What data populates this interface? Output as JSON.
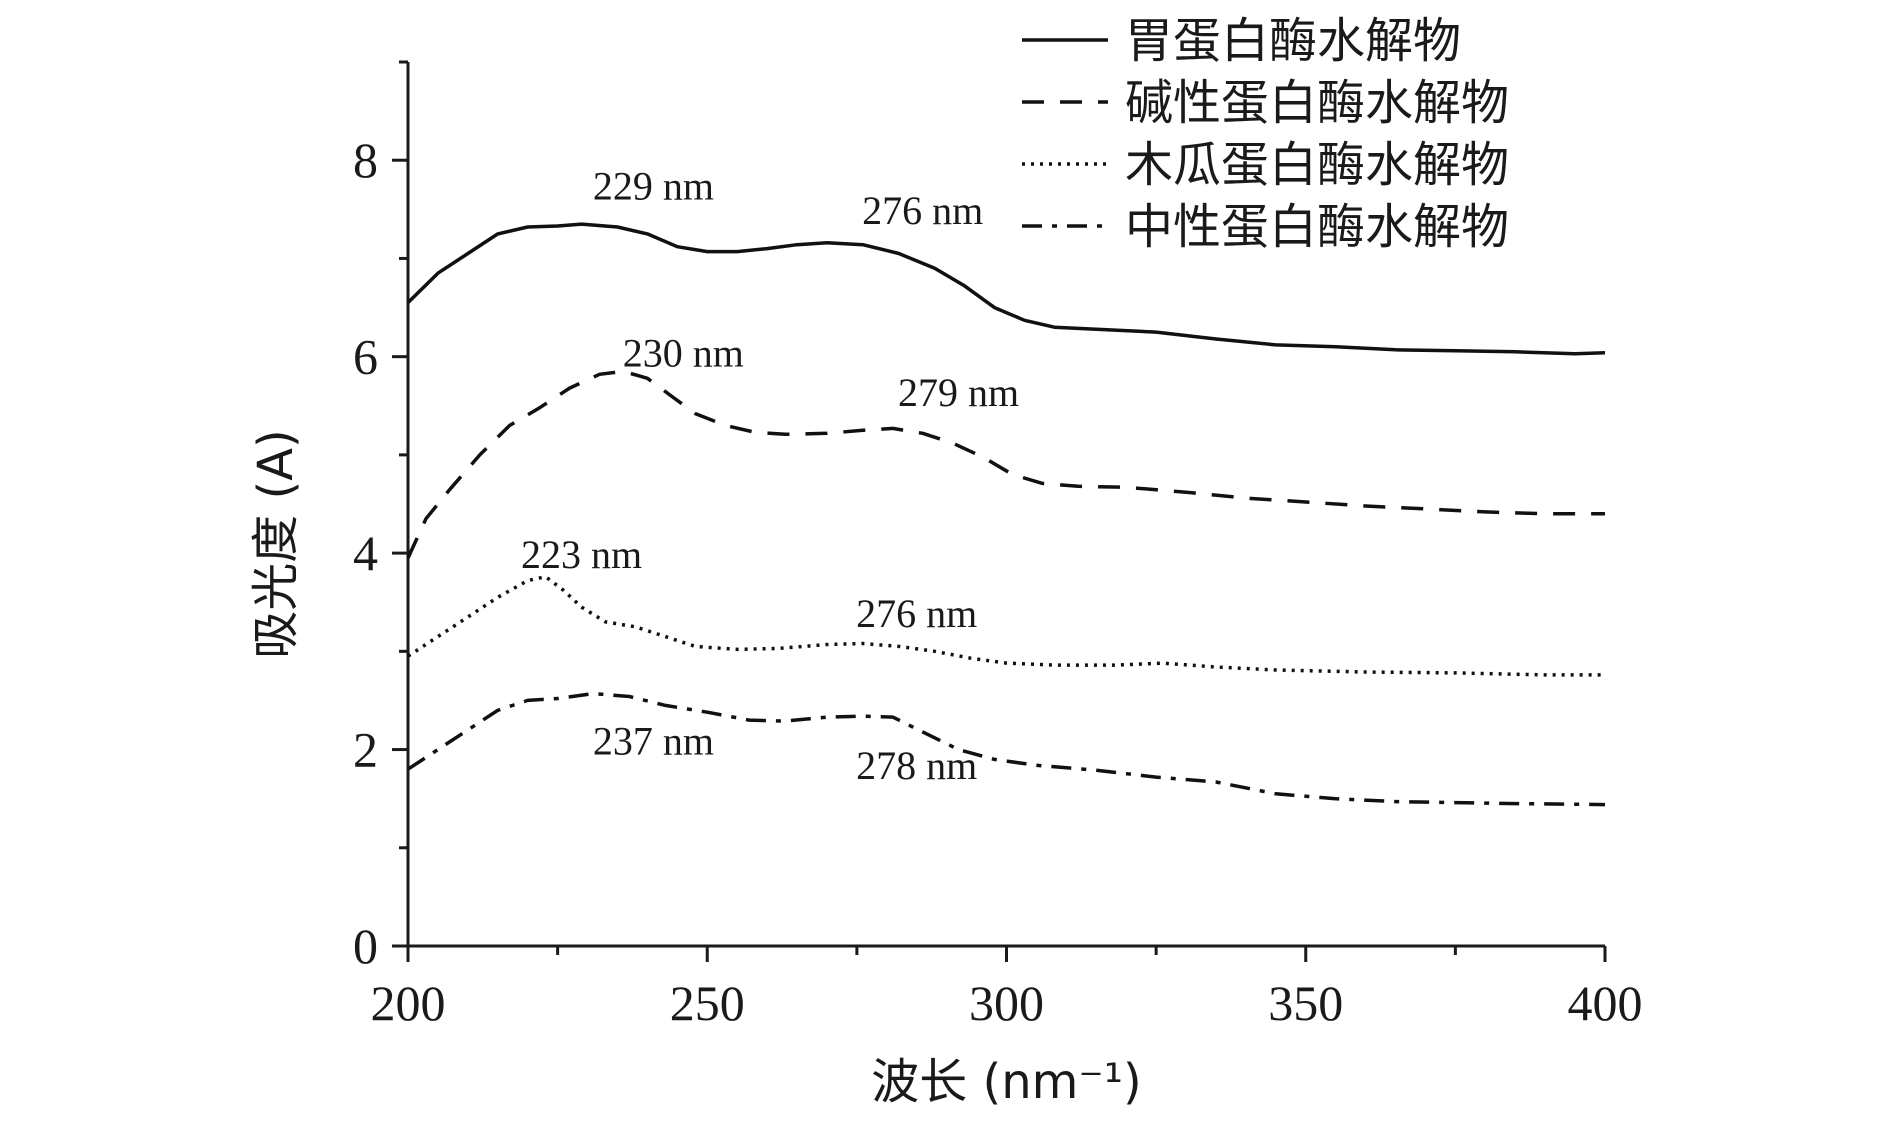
{
  "chart_data": {
    "type": "line",
    "title": "",
    "xlabel": "波长 (nm⁻¹)",
    "ylabel": "吸光度 (A)",
    "xlim": [
      200,
      400
    ],
    "ylim": [
      0,
      9
    ],
    "x_ticks": [
      200,
      250,
      300,
      350,
      400
    ],
    "y_ticks": [
      0,
      2,
      4,
      6,
      8
    ],
    "grid": false,
    "legend_position": "top-right",
    "series": [
      {
        "name": "胃蛋白酶水解物",
        "dash": "solid",
        "points": [
          [
            200,
            6.55
          ],
          [
            205,
            6.85
          ],
          [
            210,
            7.05
          ],
          [
            215,
            7.25
          ],
          [
            220,
            7.32
          ],
          [
            225,
            7.33
          ],
          [
            229,
            7.35
          ],
          [
            235,
            7.32
          ],
          [
            240,
            7.25
          ],
          [
            245,
            7.12
          ],
          [
            250,
            7.07
          ],
          [
            255,
            7.07
          ],
          [
            260,
            7.1
          ],
          [
            265,
            7.14
          ],
          [
            270,
            7.16
          ],
          [
            276,
            7.14
          ],
          [
            282,
            7.05
          ],
          [
            288,
            6.9
          ],
          [
            293,
            6.72
          ],
          [
            298,
            6.5
          ],
          [
            303,
            6.37
          ],
          [
            308,
            6.3
          ],
          [
            315,
            6.28
          ],
          [
            325,
            6.25
          ],
          [
            335,
            6.18
          ],
          [
            345,
            6.12
          ],
          [
            355,
            6.1
          ],
          [
            365,
            6.07
          ],
          [
            375,
            6.06
          ],
          [
            385,
            6.05
          ],
          [
            395,
            6.03
          ],
          [
            400,
            6.04
          ]
        ]
      },
      {
        "name": "碱性蛋白酶水解物",
        "dash": "dashed",
        "points": [
          [
            200,
            3.95
          ],
          [
            203,
            4.35
          ],
          [
            207,
            4.65
          ],
          [
            212,
            5.0
          ],
          [
            217,
            5.3
          ],
          [
            222,
            5.48
          ],
          [
            227,
            5.68
          ],
          [
            232,
            5.82
          ],
          [
            236,
            5.85
          ],
          [
            240,
            5.78
          ],
          [
            244,
            5.6
          ],
          [
            248,
            5.42
          ],
          [
            253,
            5.3
          ],
          [
            258,
            5.23
          ],
          [
            263,
            5.21
          ],
          [
            270,
            5.22
          ],
          [
            276,
            5.25
          ],
          [
            281,
            5.27
          ],
          [
            286,
            5.22
          ],
          [
            291,
            5.12
          ],
          [
            296,
            4.98
          ],
          [
            301,
            4.8
          ],
          [
            306,
            4.71
          ],
          [
            312,
            4.68
          ],
          [
            320,
            4.67
          ],
          [
            330,
            4.62
          ],
          [
            340,
            4.56
          ],
          [
            350,
            4.52
          ],
          [
            360,
            4.48
          ],
          [
            370,
            4.45
          ],
          [
            380,
            4.42
          ],
          [
            390,
            4.4
          ],
          [
            400,
            4.4
          ]
        ]
      },
      {
        "name": "木瓜蛋白酶水解物",
        "dash": "dotted",
        "points": [
          [
            200,
            2.95
          ],
          [
            205,
            3.15
          ],
          [
            210,
            3.35
          ],
          [
            215,
            3.55
          ],
          [
            220,
            3.72
          ],
          [
            223,
            3.76
          ],
          [
            226,
            3.62
          ],
          [
            229,
            3.45
          ],
          [
            233,
            3.3
          ],
          [
            238,
            3.25
          ],
          [
            243,
            3.15
          ],
          [
            248,
            3.05
          ],
          [
            255,
            3.02
          ],
          [
            262,
            3.03
          ],
          [
            270,
            3.07
          ],
          [
            276,
            3.08
          ],
          [
            282,
            3.05
          ],
          [
            288,
            3.0
          ],
          [
            294,
            2.93
          ],
          [
            300,
            2.88
          ],
          [
            308,
            2.86
          ],
          [
            318,
            2.86
          ],
          [
            326,
            2.88
          ],
          [
            335,
            2.84
          ],
          [
            345,
            2.81
          ],
          [
            360,
            2.79
          ],
          [
            375,
            2.78
          ],
          [
            390,
            2.76
          ],
          [
            400,
            2.76
          ]
        ]
      },
      {
        "name": "中性蛋白酶水解物",
        "dash": "dashdot",
        "points": [
          [
            200,
            1.8
          ],
          [
            205,
            2.0
          ],
          [
            210,
            2.2
          ],
          [
            215,
            2.4
          ],
          [
            220,
            2.5
          ],
          [
            225,
            2.52
          ],
          [
            231,
            2.57
          ],
          [
            237,
            2.54
          ],
          [
            243,
            2.45
          ],
          [
            250,
            2.38
          ],
          [
            257,
            2.3
          ],
          [
            263,
            2.29
          ],
          [
            270,
            2.33
          ],
          [
            276,
            2.34
          ],
          [
            281,
            2.33
          ],
          [
            286,
            2.18
          ],
          [
            292,
            2.0
          ],
          [
            298,
            1.9
          ],
          [
            305,
            1.84
          ],
          [
            315,
            1.79
          ],
          [
            325,
            1.72
          ],
          [
            335,
            1.67
          ],
          [
            345,
            1.55
          ],
          [
            355,
            1.5
          ],
          [
            365,
            1.47
          ],
          [
            375,
            1.46
          ],
          [
            385,
            1.45
          ],
          [
            400,
            1.44
          ]
        ]
      }
    ],
    "annotations": [
      {
        "text": "229 nm",
        "x": 241,
        "y": 7.6
      },
      {
        "text": "276 nm",
        "x": 286,
        "y": 7.35
      },
      {
        "text": "230 nm",
        "x": 246,
        "y": 5.9
      },
      {
        "text": "279 nm",
        "x": 292,
        "y": 5.5
      },
      {
        "text": "223 nm",
        "x": 229,
        "y": 3.85
      },
      {
        "text": "276 nm",
        "x": 285,
        "y": 3.25
      },
      {
        "text": "237 nm",
        "x": 241,
        "y": 1.95
      },
      {
        "text": "278 nm",
        "x": 285,
        "y": 1.7
      }
    ]
  }
}
